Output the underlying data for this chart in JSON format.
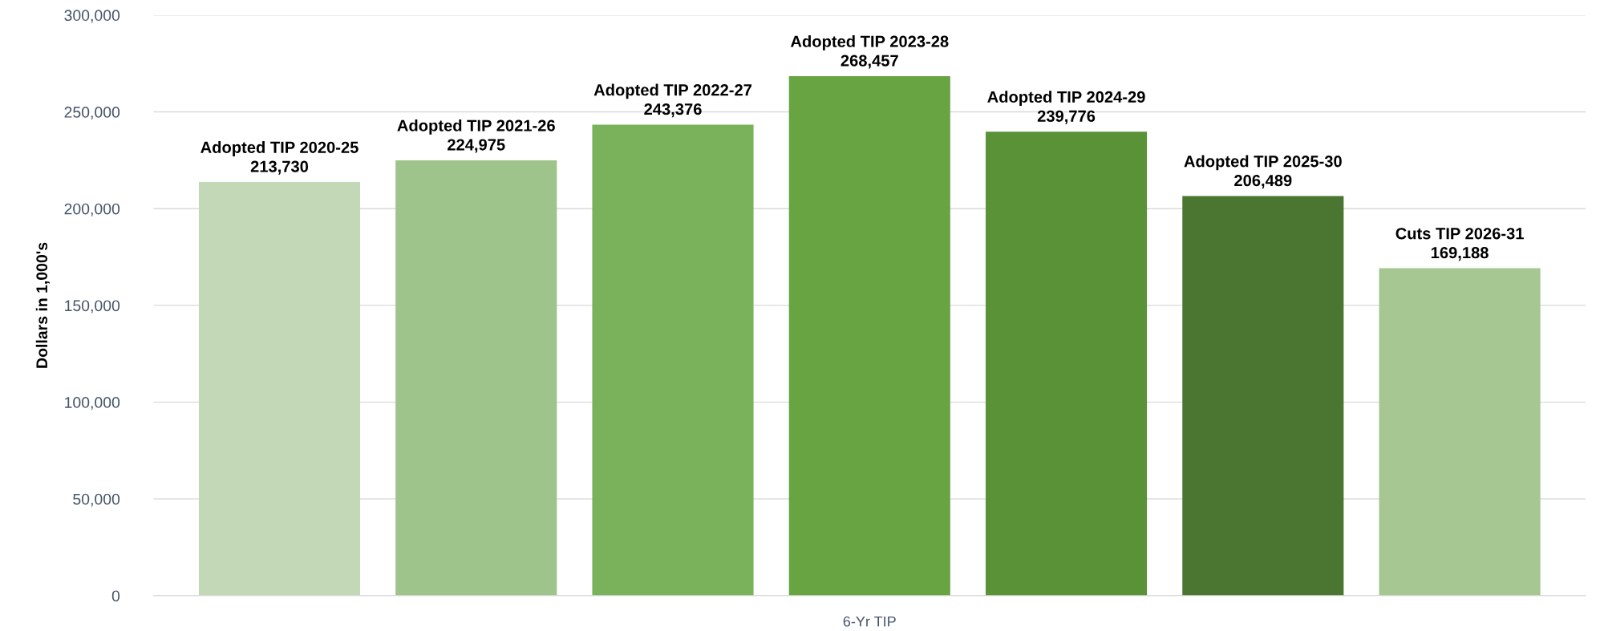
{
  "chart_data": {
    "type": "bar",
    "ylabel": "Dollars in 1,000's",
    "categories": [
      "6-Yr TIP"
    ],
    "series": [
      {
        "name": "Adopted TIP 2020-25",
        "color": "#c2d8b6",
        "values": [
          213730
        ],
        "value_labels": [
          "213,730"
        ]
      },
      {
        "name": "Adopted TIP 2021-26",
        "color": "#9ec38b",
        "values": [
          224975
        ],
        "value_labels": [
          "224,975"
        ]
      },
      {
        "name": "Adopted TIP 2022-27",
        "color": "#79b25a",
        "values": [
          243376
        ],
        "value_labels": [
          "243,376"
        ]
      },
      {
        "name": "Adopted TIP 2023-28",
        "color": "#68a442",
        "values": [
          268457
        ],
        "value_labels": [
          "268,457"
        ]
      },
      {
        "name": "Adopted TIP 2024-29",
        "color": "#5a9238",
        "values": [
          239776
        ],
        "value_labels": [
          "239,776"
        ]
      },
      {
        "name": "Adopted TIP 2025-30",
        "color": "#4a7631",
        "values": [
          206489
        ],
        "value_labels": [
          "206,489"
        ]
      },
      {
        "name": "Cuts TIP 2026-31",
        "color": "#a6c791",
        "values": [
          169188
        ],
        "value_labels": [
          "169,188"
        ]
      }
    ],
    "ylim": [
      0,
      300000
    ],
    "yticks": [
      0,
      {
        "value": 50000,
        "label": "50,000"
      },
      {
        "value": 100000,
        "label": "100,000"
      },
      {
        "value": 150000,
        "label": "150,000"
      },
      {
        "value": 200000,
        "label": "200,000"
      },
      {
        "value": 250000,
        "label": "250,000"
      },
      {
        "value": 300000,
        "label": "300,000"
      }
    ],
    "grid": "y",
    "legend": false
  }
}
